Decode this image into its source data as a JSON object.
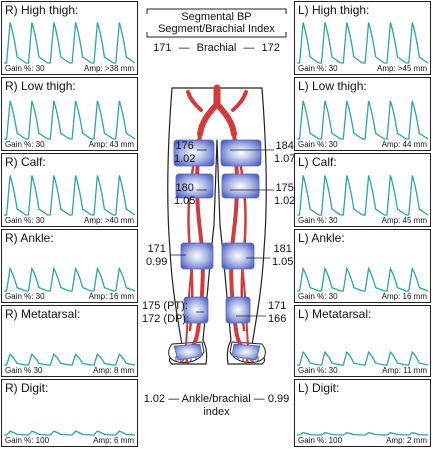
{
  "header": {
    "line1": "Segmental BP",
    "line2": "Segment/Brachial Index"
  },
  "brachial": {
    "left_value": "171",
    "label": "Brachial",
    "right_value": "172",
    "dash": "—"
  },
  "panels": {
    "right": [
      {
        "title": "R) High thigh:",
        "gain": "Gain %: 30",
        "amp": "Amp: >38 mm",
        "n": 6,
        "h": 0.9
      },
      {
        "title": "R) Low thigh:",
        "gain": "Gain %: 30",
        "amp": "Amp: 43 mm",
        "n": 6,
        "h": 0.85
      },
      {
        "title": "R) Calf:",
        "gain": "Gain %: 30",
        "amp": "Amp: >40 mm",
        "n": 6,
        "h": 0.88
      },
      {
        "title": "R) Ankle:",
        "gain": "Gain %: 30",
        "amp": "Amp: 16 mm",
        "n": 6,
        "h": 0.5
      },
      {
        "title": "R) Metatarsal:",
        "gain": "Gain % 30",
        "amp": "Amp: 8 mm",
        "n": 6,
        "h": 0.25
      },
      {
        "title": "R) Digit:",
        "gain": "Gain %: 100",
        "amp": "Amp: 6 mm",
        "n": 6,
        "h": 0.1
      }
    ],
    "left": [
      {
        "title": "L) High thigh:",
        "gain": "Gain %: 30",
        "amp": "Amp: >45 mm",
        "n": 6,
        "h": 0.9
      },
      {
        "title": "L) Low thigh:",
        "gain": "Gain %: 30",
        "amp": "Amp: 44 mm",
        "n": 6,
        "h": 0.85
      },
      {
        "title": "L) Calf:",
        "gain": "Gain %: 30",
        "amp": "Amp: 45 mm",
        "n": 6,
        "h": 0.88
      },
      {
        "title": "L) Ankle:",
        "gain": "Gain %: 30",
        "amp": "Amp: 16 mm",
        "n": 6,
        "h": 0.5
      },
      {
        "title": "L) Metatarsal:",
        "gain": "Gain %: 30",
        "amp": "Amp: 11 mm",
        "n": 6,
        "h": 0.3
      },
      {
        "title": "L) Digit:",
        "gain": "Gain %: 100",
        "amp": "Amp: 2 mm",
        "n": 6,
        "h": 0.06
      }
    ]
  },
  "pressures": {
    "right_high_thigh": {
      "bp": "176",
      "index": "1.02"
    },
    "left_high_thigh": {
      "bp": "184",
      "index": "1.07"
    },
    "right_low_thigh": {
      "bp": "180",
      "index": "1.05"
    },
    "left_low_thigh": {
      "bp": "175",
      "index": "1.02"
    },
    "right_calf": {
      "bp": "171",
      "index": "0.99"
    },
    "left_calf": {
      "bp": "181",
      "index": "1.05"
    },
    "right_ankle": {
      "pt": "175 (PT):",
      "dp": "172 (DP):"
    },
    "left_ankle": {
      "pt": "171",
      "dp": "166"
    }
  },
  "abi": {
    "right": "1.02",
    "label": "Ankle/brachial",
    "left": "0.99",
    "label2": "index",
    "dash": "—"
  },
  "colors": {
    "waveform": "#2aa6a6",
    "artery": "#d33a3a",
    "cuff": "#6677cc",
    "outline": "#222222"
  }
}
